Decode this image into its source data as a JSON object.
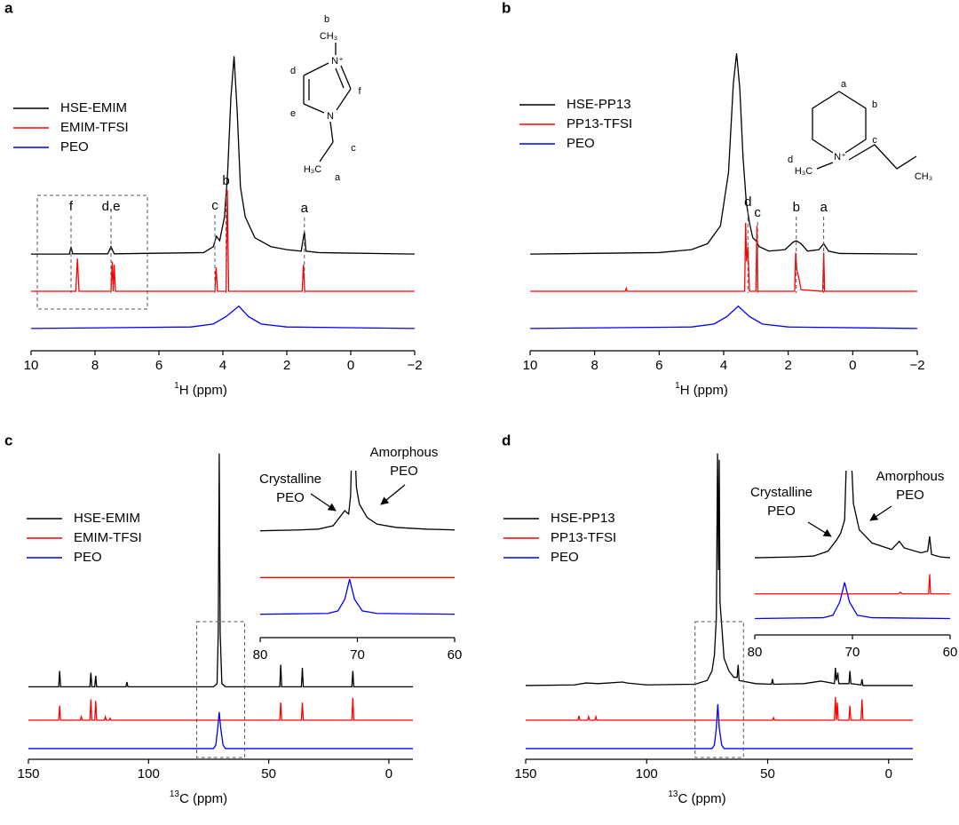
{
  "chart_data": [
    {
      "type": "line",
      "panel_label": "a",
      "xlabel_sup": "1",
      "xlabel": "H (ppm)",
      "xlim": [
        10,
        -2
      ],
      "xticks": [
        10,
        8,
        6,
        4,
        2,
        0,
        {
          "value": -2,
          "label": "−2"
        }
      ],
      "ylim": [
        0,
        100
      ],
      "structure_labels": [
        "b",
        "CH₃",
        "N⁺",
        "d",
        "f",
        "e",
        "N",
        "c",
        "H₃C",
        "a"
      ],
      "peak_labels": [
        {
          "text": "f",
          "x": 8.75
        },
        {
          "text": "d,e",
          "x": 7.5
        },
        {
          "text": "c",
          "x": 4.25
        },
        {
          "text": "b",
          "x": 3.9
        },
        {
          "text": "a",
          "x": 1.45
        }
      ],
      "series": [
        {
          "name": "HSE-EMIM",
          "color": "#000000",
          "x": [
            10,
            8.8,
            8.75,
            8.7,
            7.6,
            7.5,
            7.4,
            4.6,
            4.3,
            4.2,
            4.1,
            3.95,
            3.85,
            3.75,
            3.65,
            3.55,
            3.45,
            3.3,
            3.0,
            2.5,
            2,
            1.55,
            1.45,
            1.4,
            1,
            -2
          ],
          "values": [
            32.5,
            32.5,
            35,
            32.6,
            32.6,
            35,
            32.6,
            33,
            35,
            38.5,
            37,
            45,
            60,
            85,
            99,
            80,
            55,
            45,
            38,
            35,
            34,
            33.5,
            40,
            33.5,
            33,
            32.5
          ]
        },
        {
          "name": "EMIM-TFSI",
          "color": "#ff0000",
          "x": [
            10,
            8.6,
            8.55,
            8.5,
            7.5,
            7.46,
            7.43,
            7.4,
            7.36,
            4.25,
            4.21,
            4.17,
            3.9,
            3.86,
            3.82,
            1.52,
            1.48,
            1.44,
            -2
          ],
          "values": [
            20,
            20,
            31,
            20,
            20,
            30,
            20,
            29,
            20,
            20,
            28,
            20,
            20,
            54,
            20,
            20,
            29,
            20,
            20
          ]
        },
        {
          "name": "PEO",
          "color": "#0000ff",
          "x": [
            10,
            5,
            4.3,
            3.9,
            3.5,
            3.2,
            2.8,
            2,
            -2
          ],
          "values": [
            7.5,
            8,
            9,
            11.5,
            15,
            11.5,
            9,
            8,
            7.5
          ]
        }
      ]
    },
    {
      "type": "line",
      "panel_label": "b",
      "xlabel_sup": "1",
      "xlabel": "H (ppm)",
      "xlim": [
        10,
        -2
      ],
      "xticks": [
        10,
        8,
        6,
        4,
        2,
        0,
        {
          "value": -2,
          "label": "−2"
        }
      ],
      "ylim": [
        0,
        100
      ],
      "structure_labels": [
        "a",
        "b",
        "c",
        "N⁺",
        "d",
        "H₃C",
        "CH₃"
      ],
      "peak_labels": [
        {
          "text": "d",
          "x": 3.25
        },
        {
          "text": "c",
          "x": 2.95
        },
        {
          "text": "b",
          "x": 1.75
        },
        {
          "text": "a",
          "x": 0.9
        }
      ],
      "series": [
        {
          "name": "HSE-PP13",
          "color": "#000000",
          "x": [
            10,
            6,
            5,
            4.5,
            4.1,
            3.85,
            3.7,
            3.6,
            3.5,
            3.4,
            3.3,
            3.2,
            3.1,
            3.0,
            2.9,
            2.6,
            2.1,
            1.85,
            1.75,
            1.6,
            1.4,
            1.05,
            0.9,
            0.75,
            0.4,
            -2
          ],
          "values": [
            32.5,
            33,
            34,
            36,
            42,
            60,
            90,
            100,
            88,
            65,
            50,
            43,
            38,
            37,
            35,
            33.5,
            34,
            36.5,
            37,
            36,
            33.5,
            34,
            36,
            33.5,
            32.7,
            32.5
          ]
        },
        {
          "name": "PP13-TFSI",
          "color": "#ff0000",
          "x": [
            10,
            7.05,
            7.02,
            6.99,
            3.35,
            3.32,
            3.29,
            3.25,
            3.2,
            3.0,
            2.97,
            2.94,
            1.8,
            1.77,
            1.73,
            1.68,
            1.6,
            0.93,
            0.9,
            0.87,
            -2
          ],
          "values": [
            20,
            20,
            21,
            20,
            20,
            43,
            30,
            35,
            20,
            20,
            42,
            20,
            20,
            33,
            27,
            25,
            20.5,
            20,
            33,
            20,
            20
          ]
        },
        {
          "name": "PEO",
          "color": "#0000ff",
          "x": [
            10,
            5,
            4.3,
            3.9,
            3.55,
            3.2,
            2.8,
            2,
            -2
          ],
          "values": [
            7.5,
            8,
            9,
            11.5,
            15,
            11.5,
            9,
            8,
            7.5
          ]
        }
      ]
    },
    {
      "type": "line",
      "panel_label": "c",
      "xlabel_sup": "13",
      "xlabel": "C (ppm)",
      "xlim": [
        150,
        -10
      ],
      "xticks": [
        150,
        100,
        50,
        0
      ],
      "ylim": [
        0,
        100
      ],
      "series": [
        {
          "name": "HSE-EMIM",
          "color": "#000000",
          "x": [
            150,
            137.4,
            137,
            136.6,
            124.4,
            124,
            123.6,
            122.4,
            122,
            121.6,
            109.4,
            109,
            108.6,
            73,
            71.5,
            71,
            70.6,
            70.2,
            69.5,
            68,
            45.4,
            45,
            44.6,
            36.4,
            36,
            35.6,
            15.4,
            15,
            14.6,
            -10
          ],
          "values": [
            23,
            23,
            28,
            23,
            23,
            27.5,
            23,
            23,
            26.5,
            23,
            23,
            24.5,
            23,
            23,
            24,
            40,
            97,
            40,
            24,
            23,
            23,
            30,
            23,
            23,
            29,
            23,
            23,
            28,
            23,
            23
          ]
        },
        {
          "name": "EMIM-TFSI",
          "color": "#ff0000",
          "x": [
            150,
            137.4,
            137,
            136.6,
            128.4,
            128,
            127.6,
            124.4,
            124,
            123.6,
            122.4,
            122,
            121.6,
            118.4,
            118,
            117.6,
            116.4,
            116,
            115.6,
            45.4,
            45,
            44.6,
            36.4,
            36,
            35.6,
            15.4,
            15,
            14.6,
            -10
          ],
          "values": [
            12.4,
            12.4,
            17,
            12.4,
            12.4,
            13.5,
            12.4,
            12.4,
            19,
            12.4,
            12.4,
            18.5,
            12.4,
            12.4,
            13.5,
            12.4,
            12.4,
            13,
            12.4,
            12.4,
            18,
            12.4,
            12.4,
            18,
            12.4,
            12.4,
            19.5,
            12.4,
            12.4
          ]
        },
        {
          "name": "PEO",
          "color": "#0000ff",
          "x": [
            150,
            73,
            72,
            71.2,
            70.6,
            70,
            69,
            68,
            -10
          ],
          "values": [
            3.4,
            3.4,
            4.5,
            10,
            15,
            10,
            4.5,
            3.4,
            3.4
          ]
        }
      ],
      "inset": {
        "xlim": [
          80,
          60
        ],
        "xticks": [
          80,
          70,
          60
        ],
        "ylim": [
          0,
          100
        ],
        "annotations": [
          {
            "lines": [
              "Crystalline",
              "PEO"
            ]
          },
          {
            "lines": [
              "Amorphous",
              "PEO"
            ]
          }
        ],
        "series": [
          {
            "color": "#000000",
            "x": [
              80,
              76,
              74,
              72.5,
              71.7,
              71.3,
              70.9,
              70.7,
              70.55,
              70.3,
              70.1,
              69.8,
              69,
              68,
              66,
              63,
              60
            ],
            "values": [
              64,
              64.5,
              65,
              67,
              73,
              76,
              74,
              85,
              120,
              120,
              90,
              80,
              72,
              68,
              66,
              65,
              64.5
            ]
          },
          {
            "color": "#ff0000",
            "x": [
              80,
              60
            ],
            "values": [
              36,
              36
            ]
          },
          {
            "color": "#0000ff",
            "x": [
              80,
              73,
              72,
              71.3,
              70.8,
              70.3,
              69.5,
              68,
              60
            ],
            "values": [
              14,
              14.5,
              16,
              23,
              35,
              23,
              16,
              14.5,
              14
            ]
          }
        ]
      }
    },
    {
      "type": "line",
      "panel_label": "d",
      "xlabel_sup": "13",
      "xlabel": "C (ppm)",
      "xlim": [
        150,
        -10
      ],
      "xticks": [
        150,
        100,
        50,
        0
      ],
      "ylim": [
        0,
        100
      ],
      "series": [
        {
          "name": "HSE-PP13",
          "color": "#000000",
          "x": [
            150,
            130,
            125,
            120,
            110,
            108,
            100,
            80,
            75,
            73,
            72,
            71.2,
            70.7,
            70.3,
            70.0,
            69.7,
            68,
            66,
            65,
            64,
            62.6,
            62.2,
            61.8,
            55,
            48.4,
            48,
            47.6,
            35,
            28,
            25,
            22.4,
            22,
            21.6,
            21,
            20.6,
            16.4,
            16,
            15.6,
            11.4,
            11,
            10.6,
            -10
          ],
          "values": [
            23.4,
            23.6,
            24.2,
            24,
            24.5,
            24.2,
            23.6,
            23.8,
            25,
            28,
            33,
            45,
            97,
            60,
            95,
            50,
            32,
            28,
            27,
            26,
            26,
            30,
            25,
            24,
            23.8,
            25.5,
            23.8,
            24,
            24.8,
            24.4,
            24,
            29,
            25,
            27.5,
            24,
            24,
            28,
            24,
            23.6,
            25.4,
            23.4,
            23.4
          ]
        },
        {
          "name": "PP13-TFSI",
          "color": "#ff0000",
          "x": [
            150,
            128.4,
            128,
            127.6,
            124.4,
            124,
            123.6,
            121.4,
            121,
            120.6,
            48,
            47.6,
            47.2,
            22.4,
            22,
            21.6,
            21.2,
            20.8,
            16.4,
            16,
            15.6,
            11.4,
            11,
            10.6,
            -10
          ],
          "values": [
            12.4,
            12.4,
            13.8,
            12.4,
            12.4,
            13.5,
            12.4,
            12.4,
            13.5,
            12.4,
            12.4,
            13.2,
            12.4,
            12.4,
            19.7,
            12.4,
            18,
            12.4,
            12.4,
            17,
            12.4,
            12.4,
            19,
            12.4,
            12.4
          ]
        },
        {
          "name": "PEO",
          "color": "#0000ff",
          "x": [
            150,
            73,
            72,
            71.2,
            70.6,
            70,
            69,
            68,
            -10
          ],
          "values": [
            3.4,
            3.4,
            4.5,
            10,
            17.5,
            10,
            4.5,
            3.4,
            3.4
          ]
        }
      ],
      "inset": {
        "xlim": [
          80,
          60
        ],
        "xticks": [
          80,
          70,
          60
        ],
        "ylim": [
          0,
          100
        ],
        "annotations": [
          {
            "lines": [
              "Crystalline",
              "PEO"
            ]
          },
          {
            "lines": [
              "Amorphous",
              "PEO"
            ]
          }
        ],
        "series": [
          {
            "color": "#000000",
            "x": [
              80,
              76,
              74,
              72.5,
              71.6,
              71.2,
              70.8,
              70.55,
              70.2,
              69.9,
              69.3,
              68,
              66,
              65.2,
              64.7,
              63,
              62.3,
              62.1,
              61.9,
              61,
              60
            ],
            "values": [
              47,
              47.5,
              48,
              51,
              58,
              62,
              70,
              120,
              120,
              80,
              64,
              56,
              52,
              57,
              53,
              50,
              51,
              60,
              49,
              47.5,
              47
            ]
          },
          {
            "color": "#ff0000",
            "x": [
              80,
              65.3,
              65.1,
              64.9,
              62.2,
              62.1,
              62.0,
              60
            ],
            "values": [
              25,
              25,
              26,
              25,
              25,
              37,
              25,
              25
            ]
          },
          {
            "color": "#0000ff",
            "x": [
              80,
              73,
              72,
              71.3,
              70.8,
              70.3,
              69.5,
              68,
              60
            ],
            "values": [
              10,
              10.5,
              12,
              20,
              32,
              20,
              12,
              10.5,
              10
            ]
          }
        ]
      }
    }
  ]
}
